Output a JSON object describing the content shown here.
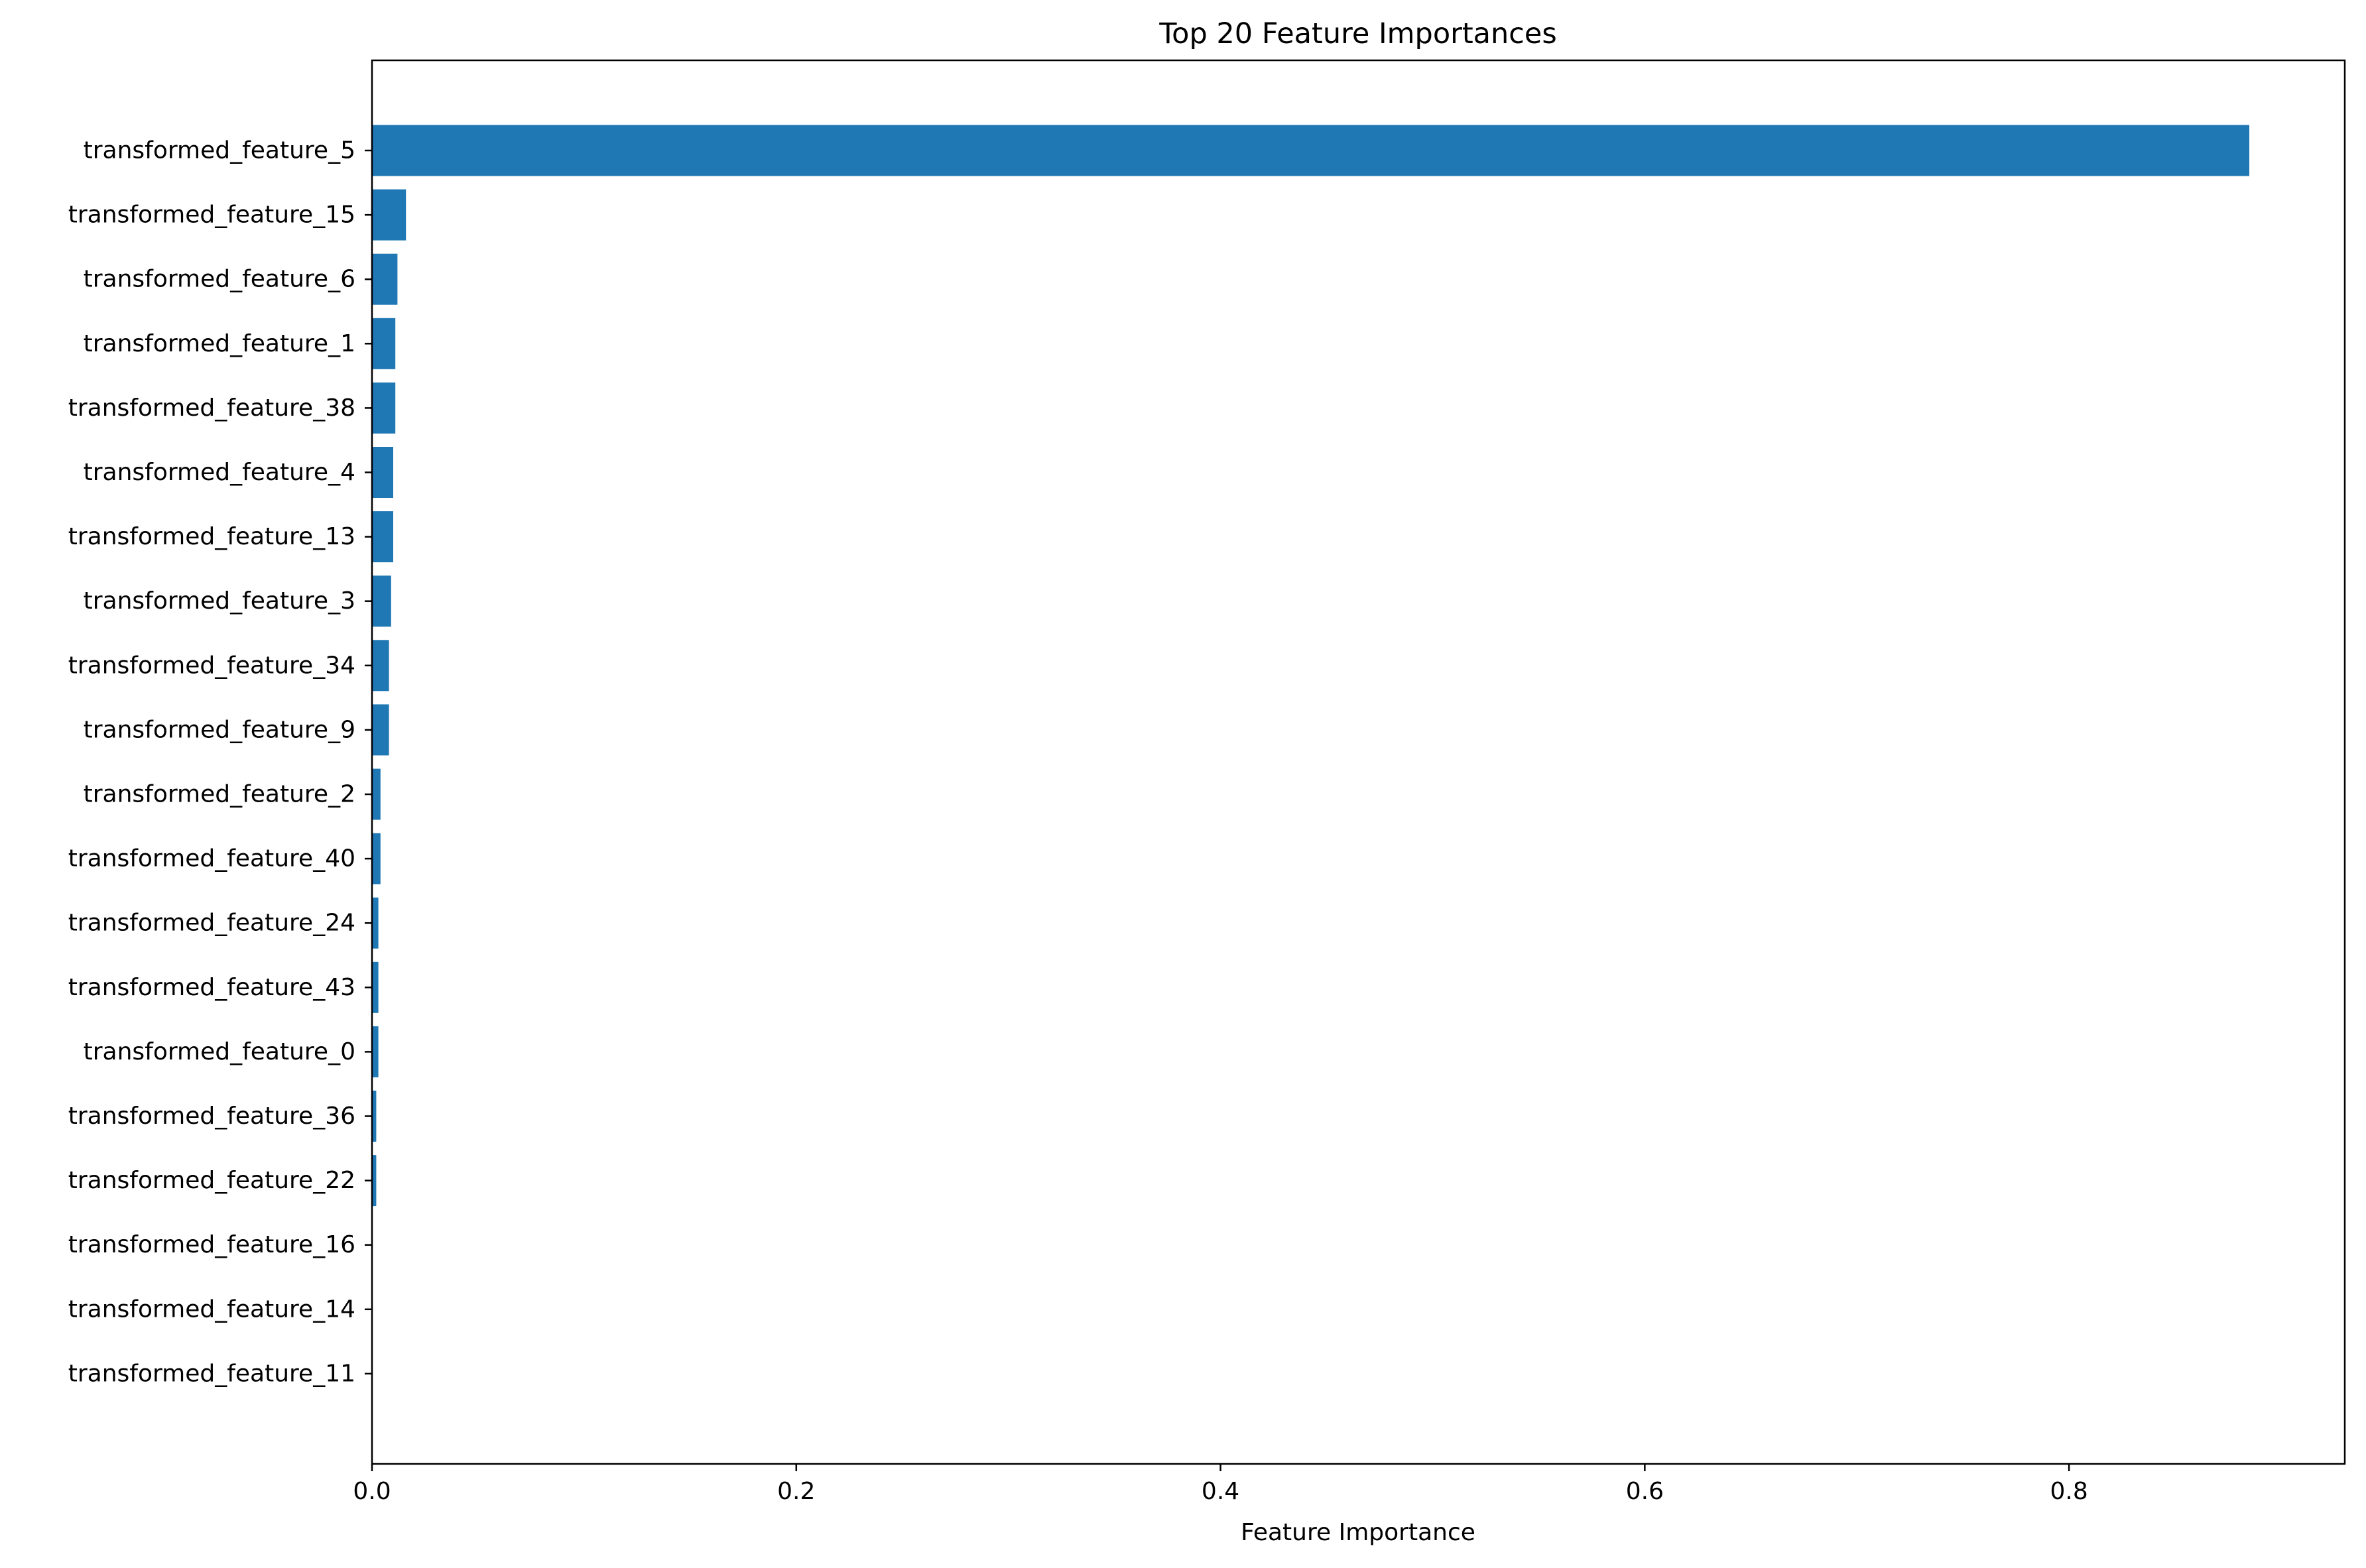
{
  "chart_data": {
    "type": "bar",
    "orientation": "horizontal",
    "title": "Top 20 Feature Importances",
    "xlabel": "Feature Importance",
    "ylabel": "",
    "xlim": [
      0,
      0.93
    ],
    "xticks": [
      "0.0",
      "0.2",
      "0.4",
      "0.6",
      "0.8"
    ],
    "grid": false,
    "legend": "none",
    "bar_color": "#1f77b4",
    "categories": [
      "transformed_feature_5",
      "transformed_feature_15",
      "transformed_feature_6",
      "transformed_feature_1",
      "transformed_feature_38",
      "transformed_feature_4",
      "transformed_feature_13",
      "transformed_feature_3",
      "transformed_feature_34",
      "transformed_feature_9",
      "transformed_feature_2",
      "transformed_feature_40",
      "transformed_feature_24",
      "transformed_feature_43",
      "transformed_feature_0",
      "transformed_feature_36",
      "transformed_feature_22",
      "transformed_feature_16",
      "transformed_feature_14",
      "transformed_feature_11"
    ],
    "values": [
      0.885,
      0.016,
      0.012,
      0.011,
      0.011,
      0.01,
      0.01,
      0.009,
      0.008,
      0.008,
      0.004,
      0.004,
      0.003,
      0.003,
      0.003,
      0.002,
      0.002,
      0.0,
      0.0,
      0.0
    ]
  }
}
